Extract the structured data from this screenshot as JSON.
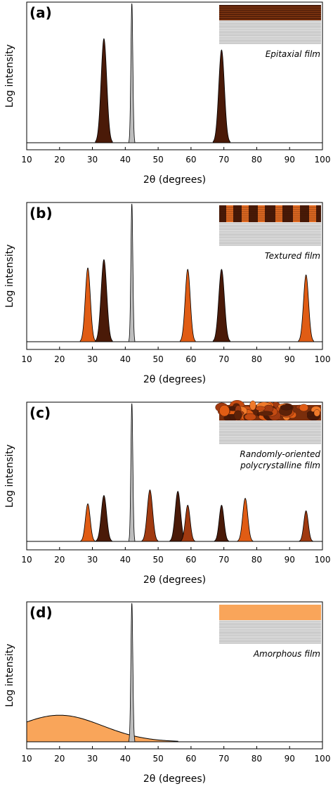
{
  "chart_data": [
    {
      "type": "area",
      "panel": "(a)",
      "inset_label_lines": [
        "Epitaxial film"
      ],
      "film_style": "epitaxial",
      "xlabel": "2θ (degrees)",
      "ylabel": "Log intensity",
      "xlim": [
        10,
        100
      ],
      "ylim": [
        0,
        1
      ],
      "xticks": [
        10,
        20,
        30,
        40,
        50,
        60,
        70,
        80,
        90,
        100
      ],
      "peaks": [
        {
          "center": 33.5,
          "height": 0.74,
          "width": 1.9,
          "kind": "film",
          "color": "#4a1a08"
        },
        {
          "center": 42.0,
          "height": 0.99,
          "width": 0.65,
          "kind": "substrate",
          "color": "#bdbdbd"
        },
        {
          "center": 69.3,
          "height": 0.66,
          "width": 1.9,
          "kind": "film",
          "color": "#4a1a08"
        }
      ]
    },
    {
      "type": "area",
      "panel": "(b)",
      "inset_label_lines": [
        "Textured film"
      ],
      "film_style": "textured",
      "xlabel": "2θ (degrees)",
      "ylabel": "Log intensity",
      "xlim": [
        10,
        100
      ],
      "ylim": [
        0,
        1
      ],
      "xticks": [
        10,
        20,
        30,
        40,
        50,
        60,
        70,
        80,
        90,
        100
      ],
      "peaks": [
        {
          "center": 28.6,
          "height": 0.53,
          "width": 1.7,
          "kind": "film",
          "color": "#e05c14"
        },
        {
          "center": 33.5,
          "height": 0.59,
          "width": 1.9,
          "kind": "film",
          "color": "#4a1a08"
        },
        {
          "center": 42.0,
          "height": 0.99,
          "width": 0.65,
          "kind": "substrate",
          "color": "#bdbdbd"
        },
        {
          "center": 59.0,
          "height": 0.52,
          "width": 1.7,
          "kind": "film",
          "color": "#e05c14"
        },
        {
          "center": 69.3,
          "height": 0.52,
          "width": 1.9,
          "kind": "film",
          "color": "#4a1a08"
        },
        {
          "center": 95.0,
          "height": 0.48,
          "width": 1.7,
          "kind": "film",
          "color": "#e05c14"
        }
      ]
    },
    {
      "type": "area",
      "panel": "(c)",
      "inset_label_lines": [
        "Randomly-oriented",
        "polycrystalline film"
      ],
      "film_style": "polycrystalline",
      "xlabel": "2θ (degrees)",
      "ylabel": "Log intensity",
      "xlim": [
        10,
        100
      ],
      "ylim": [
        0,
        1
      ],
      "xticks": [
        10,
        20,
        30,
        40,
        50,
        60,
        70,
        80,
        90,
        100
      ],
      "peaks": [
        {
          "center": 28.6,
          "height": 0.27,
          "width": 1.6,
          "kind": "film",
          "color": "#e05c14"
        },
        {
          "center": 33.5,
          "height": 0.33,
          "width": 1.8,
          "kind": "film",
          "color": "#4a1a08"
        },
        {
          "center": 42.0,
          "height": 0.99,
          "width": 0.65,
          "kind": "substrate",
          "color": "#bdbdbd"
        },
        {
          "center": 47.5,
          "height": 0.37,
          "width": 1.8,
          "kind": "film",
          "color": "#a13a10"
        },
        {
          "center": 56.0,
          "height": 0.36,
          "width": 1.8,
          "kind": "film",
          "color": "#4a1a08"
        },
        {
          "center": 59.0,
          "height": 0.26,
          "width": 1.6,
          "kind": "film",
          "color": "#a13a10"
        },
        {
          "center": 69.3,
          "height": 0.26,
          "width": 1.6,
          "kind": "film",
          "color": "#4a1a08"
        },
        {
          "center": 76.5,
          "height": 0.31,
          "width": 1.7,
          "kind": "film",
          "color": "#e05c14"
        },
        {
          "center": 95.0,
          "height": 0.22,
          "width": 1.5,
          "kind": "film",
          "color": "#a13a10"
        }
      ]
    },
    {
      "type": "area",
      "panel": "(d)",
      "inset_label_lines": [
        "Amorphous film"
      ],
      "film_style": "amorphous",
      "xlabel": "2θ (degrees)",
      "ylabel": "Log intensity",
      "xlim": [
        10,
        100
      ],
      "ylim": [
        0,
        1
      ],
      "xticks": [
        10,
        20,
        30,
        40,
        50,
        60,
        70,
        80,
        90,
        100
      ],
      "broad_hump": {
        "center": 20.0,
        "height": 0.19,
        "sigma": 13.0,
        "x_end": 56,
        "color": "#f9a55a"
      },
      "peaks": [
        {
          "center": 42.0,
          "height": 0.99,
          "width": 0.65,
          "kind": "substrate",
          "color": "#bdbdbd"
        }
      ]
    }
  ]
}
